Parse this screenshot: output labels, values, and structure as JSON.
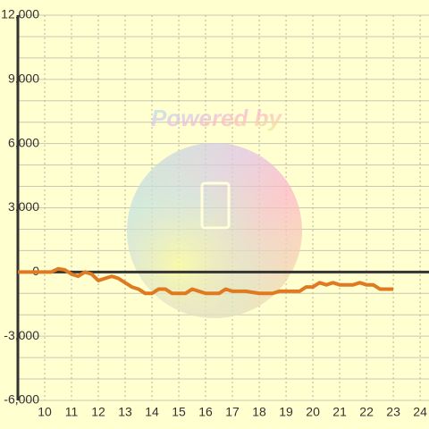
{
  "chart_data": {
    "type": "line",
    "watermark": "Powered by",
    "xlim": [
      9,
      24.33
    ],
    "ylim": [
      -6000,
      12000
    ],
    "xticks": [
      10,
      11,
      12,
      13,
      14,
      15,
      16,
      17,
      18,
      19,
      20,
      21,
      22,
      23,
      24
    ],
    "yticks": [
      {
        "value": -6000,
        "label": "-6,000"
      },
      {
        "value": -3000,
        "label": "-3,000"
      },
      0,
      {
        "value": 3000,
        "label": "3,000"
      },
      {
        "value": 6000,
        "label": "6,000"
      },
      {
        "value": 9000,
        "label": "9,000"
      },
      {
        "value": 12000,
        "label": "12,000"
      }
    ],
    "minor_yticks": [
      -5000,
      -4000,
      -2000,
      -1000,
      1000,
      2000,
      4000,
      5000,
      7000,
      8000,
      10000,
      11000
    ],
    "grid": true,
    "series": [
      {
        "color": "#e07a22",
        "x": [
          9,
          9.5,
          10,
          10.25,
          10.5,
          10.75,
          11,
          11.25,
          11.5,
          11.75,
          12,
          12.25,
          12.5,
          12.75,
          13,
          13.25,
          13.5,
          13.75,
          14,
          14.25,
          14.5,
          14.75,
          15,
          15.25,
          15.5,
          15.75,
          16,
          16.25,
          16.5,
          16.75,
          17,
          17.5,
          18,
          18.5,
          18.75,
          19,
          19.5,
          19.75,
          20,
          20.25,
          20.5,
          20.75,
          21,
          21.5,
          21.75,
          22,
          22.25,
          22.5,
          23
        ],
        "values": [
          0,
          0,
          0,
          0,
          150,
          100,
          -100,
          -200,
          0,
          -100,
          -400,
          -300,
          -200,
          -300,
          -500,
          -700,
          -800,
          -1000,
          -1000,
          -800,
          -800,
          -1000,
          -1000,
          -1000,
          -800,
          -900,
          -1000,
          -1000,
          -1000,
          -800,
          -900,
          -900,
          -1000,
          -1000,
          -900,
          -900,
          -900,
          -700,
          -700,
          -500,
          -600,
          -500,
          -600,
          -600,
          -500,
          -600,
          -600,
          -800,
          -800
        ]
      }
    ]
  }
}
